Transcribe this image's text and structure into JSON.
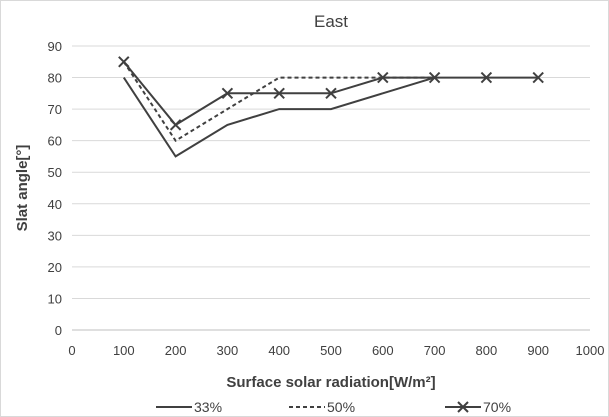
{
  "chart_data": {
    "type": "line",
    "title": "East",
    "xlabel": "Surface solar radiation[W/m²]",
    "ylabel": "Slat angle[°]",
    "xlim": [
      0,
      1000
    ],
    "ylim": [
      0,
      90
    ],
    "x_ticks": [
      "0",
      "100",
      "200",
      "300",
      "400",
      "500",
      "600",
      "700",
      "800",
      "900",
      "1000"
    ],
    "y_ticks": [
      "0",
      "10",
      "20",
      "30",
      "40",
      "50",
      "60",
      "70",
      "80",
      "90"
    ],
    "grid": "horizontal",
    "legend": "bottom",
    "x": [
      100,
      200,
      300,
      400,
      500,
      600,
      700,
      800,
      900
    ],
    "series": [
      {
        "name": "33%",
        "style": "solid",
        "marker": "none",
        "color": "#404040",
        "values": [
          80,
          55,
          65,
          70,
          70,
          75,
          80,
          null,
          null
        ]
      },
      {
        "name": "50%",
        "style": "dashed",
        "marker": "none",
        "color": "#404040",
        "values": [
          85,
          60,
          70,
          80,
          80,
          80,
          80,
          null,
          null
        ]
      },
      {
        "name": "70%",
        "style": "solid",
        "marker": "x",
        "color": "#404040",
        "values": [
          85,
          65,
          75,
          75,
          75,
          80,
          80,
          80,
          80
        ]
      }
    ]
  }
}
